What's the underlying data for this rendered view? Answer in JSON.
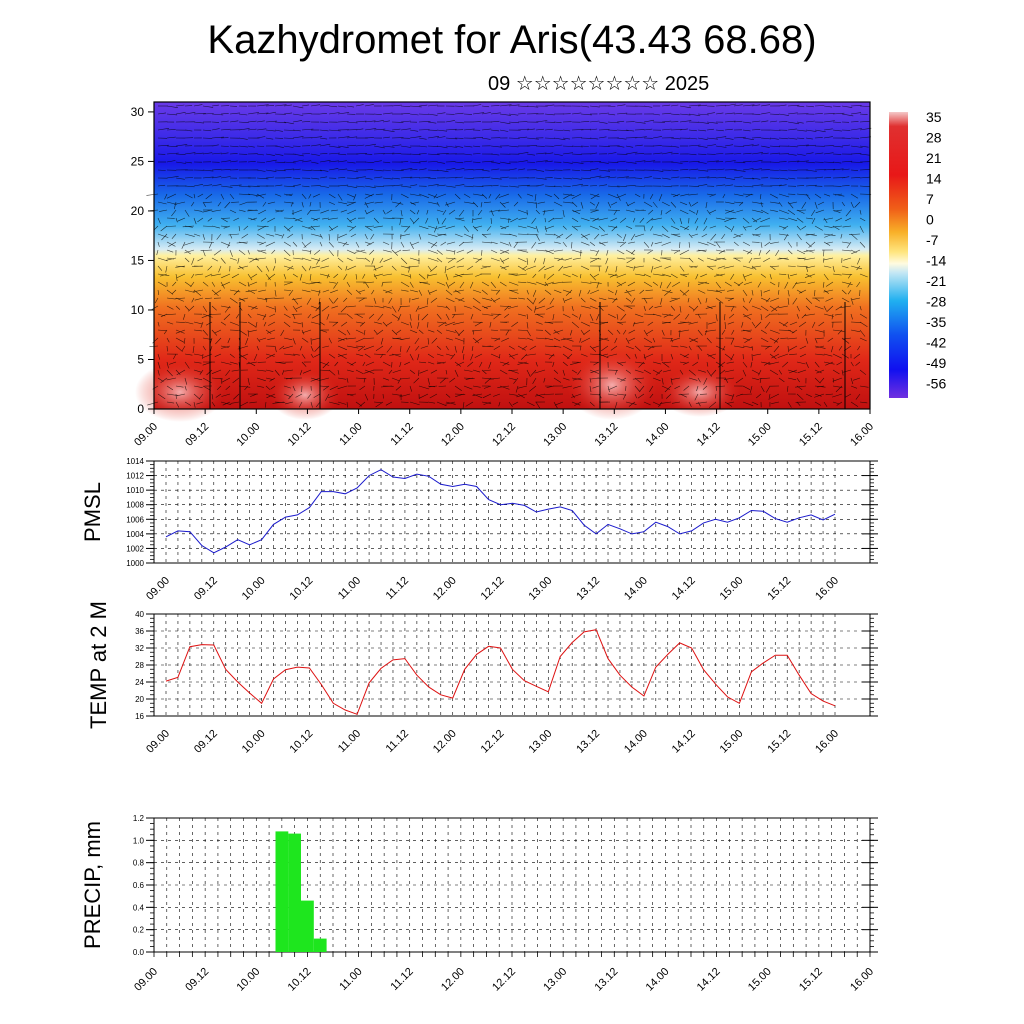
{
  "header": {
    "title": "Kazhydromet for Aris(43.43 68.68)",
    "date": "09 ☆☆☆☆☆☆☆☆ 2025"
  },
  "time_labels": [
    "09.00",
    "09.12",
    "10.00",
    "10.12",
    "11.00",
    "11.12",
    "12.00",
    "12.12",
    "13.00",
    "13.12",
    "14.00",
    "14.12",
    "15.00",
    "15.12",
    "16.00"
  ],
  "colors": {
    "pmsl_line": "#1a1acc",
    "temp_line": "#dd1111",
    "precip_bar": "#1ee61e",
    "grid": "#000000"
  },
  "chart_data": [
    {
      "type": "heatmap",
      "title": "",
      "yticks": [
        0,
        5,
        10,
        15,
        20,
        25,
        30
      ],
      "ylim": [
        0,
        31
      ],
      "colorbar": {
        "labels": [
          "35",
          "28",
          "21",
          "14",
          "7",
          "0",
          "-7",
          "-14",
          "-21",
          "-28",
          "-35",
          "-42",
          "-49",
          "-56"
        ]
      },
      "overlay": "wind barbs"
    },
    {
      "type": "line",
      "ylabel": "PMSL",
      "ylim": [
        1000,
        1014
      ],
      "yticks": [
        1000,
        1002,
        1004,
        1006,
        1008,
        1010,
        1012,
        1014
      ],
      "values": [
        1003.6,
        1004.4,
        1004.3,
        1002.4,
        1001.4,
        1002.2,
        1003.2,
        1002.5,
        1003.2,
        1005.3,
        1006.3,
        1006.6,
        1007.6,
        1009.8,
        1009.8,
        1009.5,
        1010.3,
        1012.0,
        1012.8,
        1011.8,
        1011.6,
        1012.2,
        1011.9,
        1010.8,
        1010.5,
        1010.8,
        1010.5,
        1008.7,
        1008.0,
        1008.2,
        1007.9,
        1007.0,
        1007.4,
        1007.7,
        1007.2,
        1005.2,
        1004.0,
        1005.3,
        1004.7,
        1004.0,
        1004.3,
        1005.6,
        1005.0,
        1004.0,
        1004.4,
        1005.5,
        1006.0,
        1005.6,
        1006.2,
        1007.2,
        1007.1,
        1006.1,
        1005.6,
        1006.2,
        1006.6,
        1005.9,
        1006.7
      ]
    },
    {
      "type": "line",
      "ylabel": "TEMP at 2 M",
      "ylim": [
        16,
        40
      ],
      "yticks": [
        16,
        20,
        24,
        28,
        32,
        36,
        40
      ],
      "values": [
        24.2,
        25.1,
        32.3,
        32.8,
        32.7,
        27.0,
        24.0,
        21.4,
        19.0,
        24.7,
        26.9,
        27.5,
        27.3,
        23.4,
        19.0,
        17.4,
        16.4,
        23.8,
        27.2,
        29.2,
        29.5,
        25.6,
        22.8,
        21.0,
        20.2,
        27.0,
        30.5,
        32.4,
        32.0,
        27.0,
        24.3,
        23.0,
        21.7,
        30.0,
        33.3,
        35.8,
        36.3,
        29.5,
        25.6,
        22.8,
        20.7,
        27.5,
        30.5,
        33.2,
        32.0,
        26.9,
        23.5,
        20.5,
        19.0,
        26.4,
        28.5,
        30.3,
        30.3,
        25.6,
        21.3,
        19.5,
        18.4
      ]
    },
    {
      "type": "bar",
      "ylabel": "PRECIP, mm",
      "ylim": [
        0,
        1.2
      ],
      "yticks": [
        "0.0",
        "0.2",
        "0.4",
        "0.6",
        "0.8",
        "1.0",
        "1.2"
      ],
      "x": [
        "10.06",
        "10.09",
        "10.12",
        "10.15"
      ],
      "values": [
        1.08,
        1.06,
        0.46,
        0.12
      ]
    }
  ]
}
